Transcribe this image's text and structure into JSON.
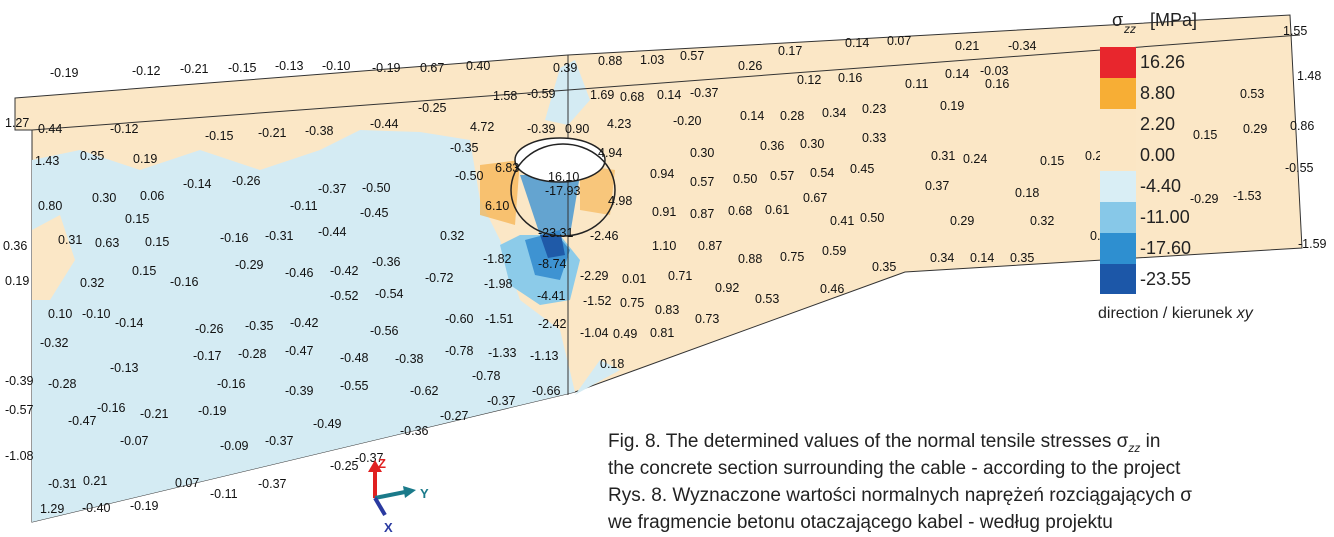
{
  "diagram": {
    "field_labels": [
      "-0.19",
      "-0.12",
      "-0.21",
      "-0.15",
      "-0.13",
      "-0.10",
      "-0.19",
      "0.67",
      "0.40",
      "1.27",
      "0.44",
      "-0.12",
      "-0.15",
      "-0.21",
      "-0.38",
      "-0.44",
      "-0.25",
      "1.58",
      "-0.59",
      "4.72",
      "0.39",
      "0.88",
      "1.03",
      "0.57",
      "0.26",
      "0.17",
      "0.14",
      "0.07",
      "0.21",
      "-0.34",
      "1.55",
      "0.12",
      "0.16",
      "0.11",
      "0.14",
      "-0.03",
      "0.16",
      "1.48",
      "0.53",
      "1.69",
      "0.68",
      "0.14",
      "-0.37",
      "0.19",
      "0.86",
      "0.29",
      "0.15",
      "4.23",
      "-0.20",
      "0.14",
      "0.28",
      "0.34",
      "0.23",
      "-0.39",
      "0.90",
      "-0.35",
      "1.43",
      "0.35",
      "0.19",
      "0.30",
      "0.36",
      "0.30",
      "0.33",
      "0.31",
      "0.24",
      "0.15",
      "0.23",
      "-0.55",
      "4.94",
      "6.83",
      "16.10",
      "-17.93",
      "-0.50",
      "0.94",
      "0.57",
      "0.50",
      "0.57",
      "0.54",
      "0.45",
      "0.37",
      "0.18",
      "-0.29",
      "-1.53",
      "-0.14",
      "-0.26",
      "0.80",
      "0.30",
      "0.06",
      "-0.37",
      "-0.50",
      "-0.11",
      "-0.45",
      "6.10",
      "4.98",
      "0.91",
      "0.87",
      "0.68",
      "0.61",
      "0.67",
      "0.15",
      "-0.16",
      "-0.31",
      "-0.44",
      "0.32",
      "-23.31",
      "-2.46",
      "0.41",
      "0.50",
      "0.29",
      "0.32",
      "0.27",
      "-1.59",
      "0.36",
      "0.31",
      "0.63",
      "0.15",
      "1.10",
      "0.87",
      "0.88",
      "0.75",
      "0.59",
      "-1.82",
      "-8.74",
      "0.34",
      "0.14",
      "0.35",
      "-0.29",
      "-0.46",
      "-0.42",
      "-0.36",
      "-0.72",
      "0.15",
      "-0.16",
      "0.19",
      "0.32",
      "-1.98",
      "-2.29",
      "0.01",
      "0.71",
      "0.92",
      "0.35",
      "0.46",
      "-0.52",
      "-0.54",
      "-4.41",
      "0.10",
      "-0.10",
      "-0.14",
      "-0.26",
      "-0.35",
      "-0.42",
      "-0.56",
      "-0.60",
      "-1.51",
      "-2.42",
      "-1.52",
      "0.75",
      "0.83",
      "0.73",
      "0.53",
      "-0.32",
      "-1.04",
      "0.49",
      "0.81",
      "-0.17",
      "-0.28",
      "-0.47",
      "-0.48",
      "-0.38",
      "-0.78",
      "-1.33",
      "-1.13",
      "0.18",
      "-0.13",
      "-0.78",
      "-0.39",
      "-0.28",
      "-0.16",
      "-0.39",
      "-0.55",
      "-0.62",
      "-0.66",
      "-0.37",
      "-0.57",
      "-0.47",
      "-0.16",
      "-0.21",
      "-0.19",
      "-0.27",
      "-0.36",
      "-0.49",
      "-0.07",
      "-0.09",
      "-0.37",
      "-1.08",
      "-0.25",
      "-0.37",
      "0.21",
      "-0.31",
      "0.07",
      "-0.37",
      "-0.11",
      "1.29",
      "-0.40",
      "-0.19"
    ],
    "axes": [
      "Z",
      "Y",
      "X"
    ],
    "legend": {
      "symbol": "σ",
      "subscript": "zz",
      "unit": "[MPa]",
      "levels": [
        "16.26",
        "8.80",
        "2.20",
        "0.00",
        "-4.40",
        "-11.00",
        "-17.60",
        "-23.55"
      ],
      "note": "direction / kierunek ",
      "note_italic": "xy"
    },
    "caption": {
      "line1": "Fig. 8. The determined values of the normal tensile stresses σ",
      "line1_sub": "zz",
      "line1_end": " in",
      "line2": "the concrete section surrounding the cable - according to the project",
      "line3": "Rys. 8. Wyznaczone wartości normalnych naprężeń rozciągających σ",
      "line4": "we fragmencie betonu otaczającego kabel - według projektu"
    }
  }
}
